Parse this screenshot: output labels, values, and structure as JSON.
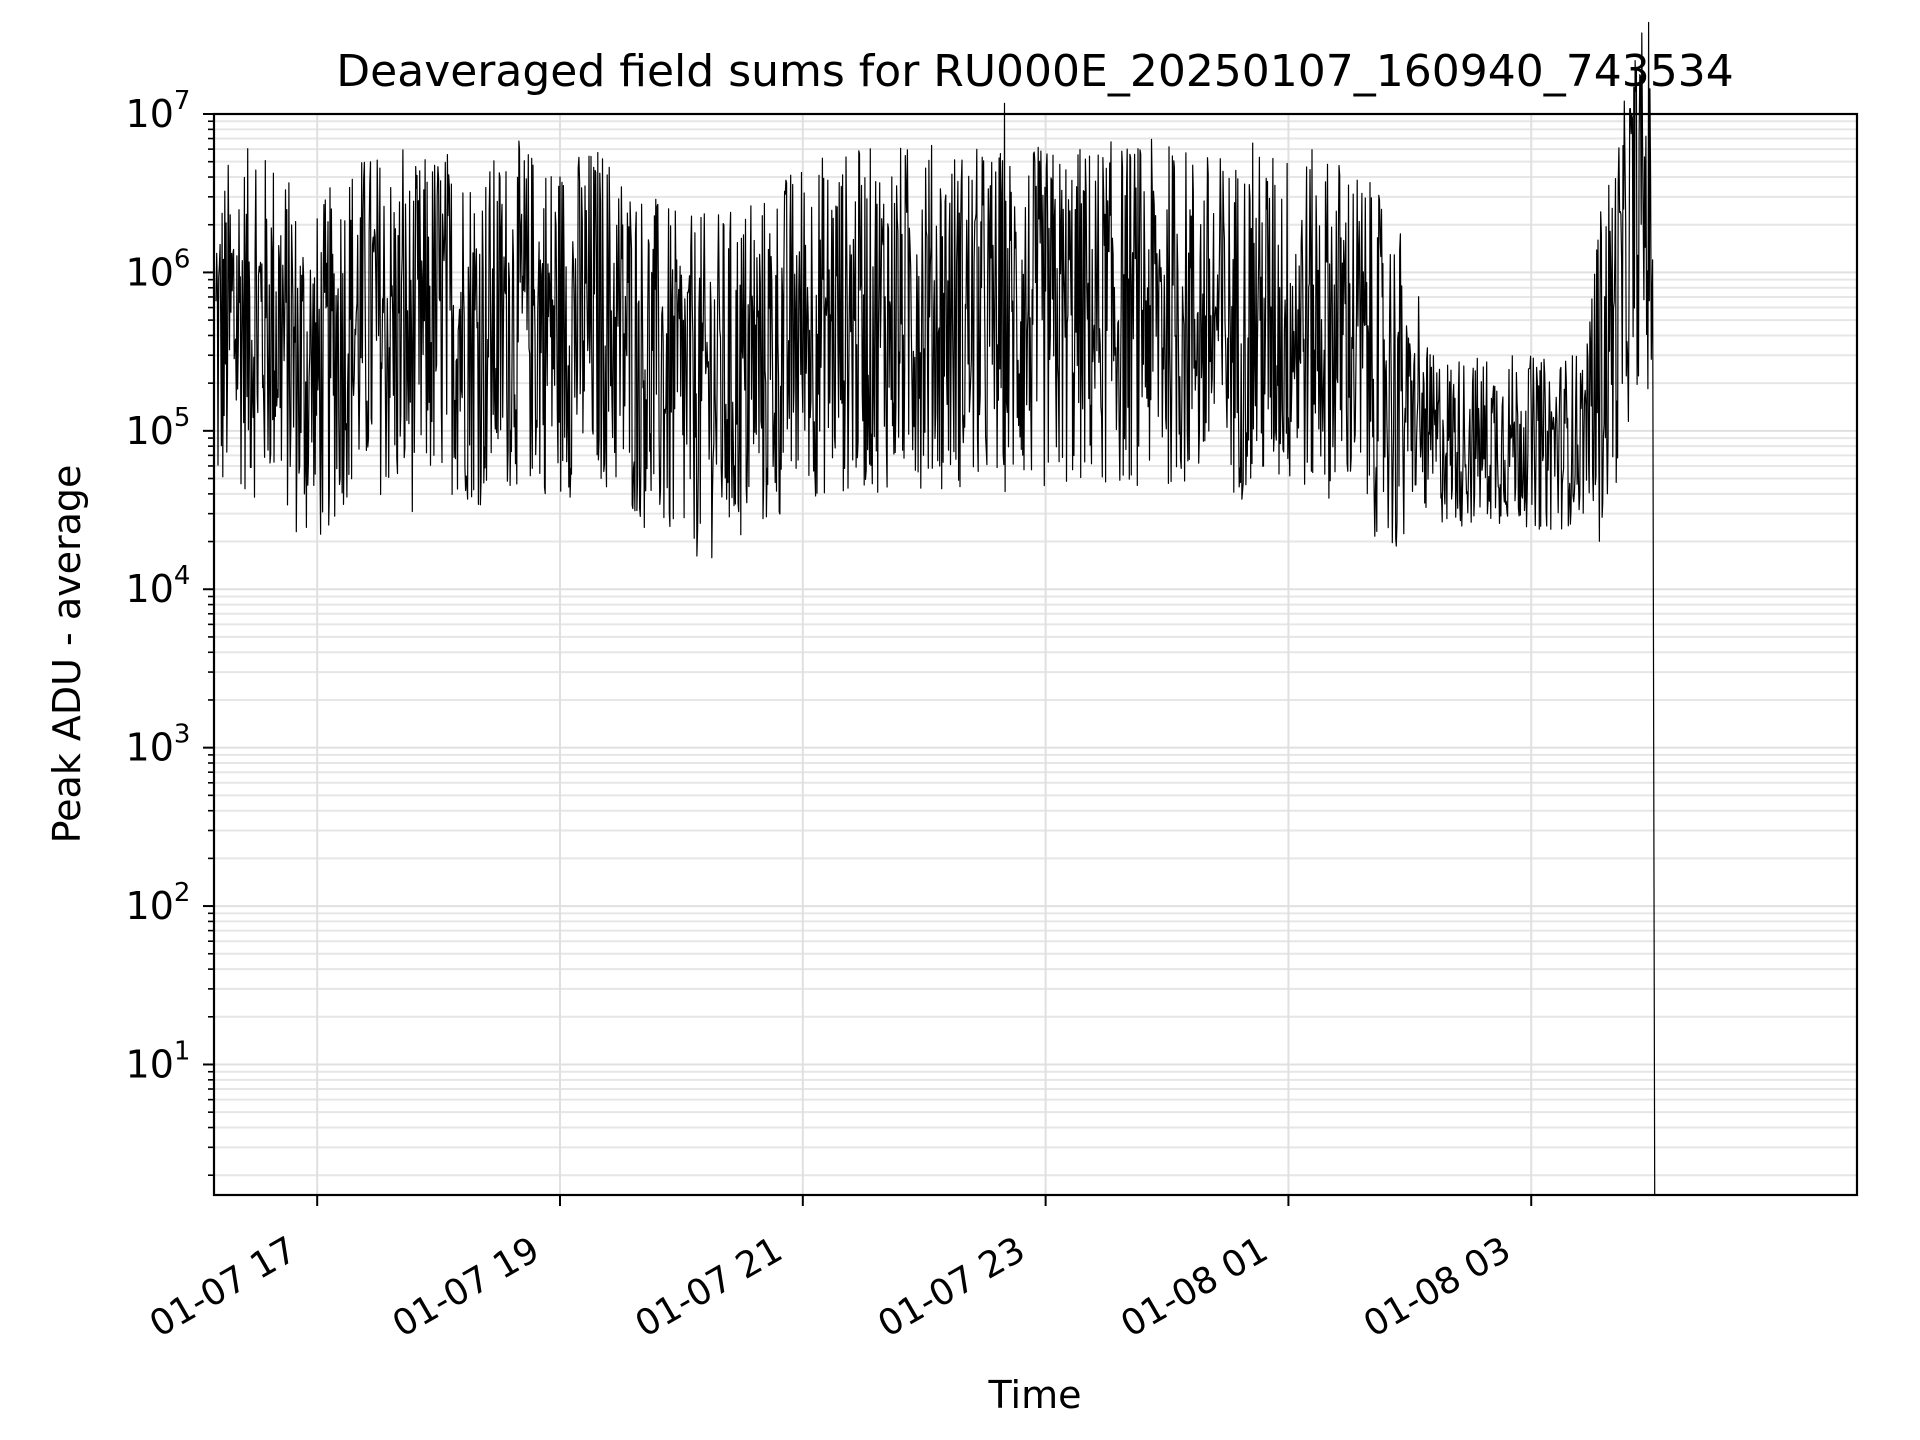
{
  "chart_data": {
    "type": "line",
    "title": "Deaveraged field sums for RU000E_20250107_160940_743534",
    "xlabel": "Time",
    "ylabel": "Peak ADU - average",
    "x_scale": "time",
    "y_scale": "log",
    "xlim": [
      "2025-01-07 16:09",
      "2025-01-08 05:41"
    ],
    "ylim": [
      1.5,
      10000000
    ],
    "grid": true,
    "x_ticks": [
      {
        "t": "2025-01-07 17:00",
        "label": "01-07 17"
      },
      {
        "t": "2025-01-07 19:00",
        "label": "01-07 19"
      },
      {
        "t": "2025-01-07 21:00",
        "label": "01-07 21"
      },
      {
        "t": "2025-01-07 23:00",
        "label": "01-07 23"
      },
      {
        "t": "2025-01-08 01:00",
        "label": "01-08 01"
      },
      {
        "t": "2025-01-08 03:00",
        "label": "01-08 03"
      }
    ],
    "y_ticks": [
      {
        "value": 10,
        "base": "10",
        "exp": "1"
      },
      {
        "value": 100,
        "base": "10",
        "exp": "2"
      },
      {
        "value": 1000,
        "base": "10",
        "exp": "3"
      },
      {
        "value": 10000,
        "base": "10",
        "exp": "4"
      },
      {
        "value": 100000,
        "base": "10",
        "exp": "5"
      },
      {
        "value": 1000000,
        "base": "10",
        "exp": "6"
      },
      {
        "value": 10000000,
        "base": "10",
        "exp": "7"
      }
    ],
    "series": [
      {
        "line_color": "#000000",
        "points": [
          [
            "2025-01-07 16:10",
            300000
          ],
          [
            "2025-01-07 16:20",
            550000
          ],
          [
            "2025-01-07 16:30",
            450000
          ],
          [
            "2025-01-07 16:40",
            500000
          ],
          [
            "2025-01-07 16:50",
            250000
          ],
          [
            "2025-01-07 17:00",
            200000
          ],
          [
            "2025-01-07 17:15",
            450000
          ],
          [
            "2025-01-07 17:30",
            500000
          ],
          [
            "2025-01-07 17:45",
            350000
          ],
          [
            "2025-01-07 18:00",
            550000
          ],
          [
            "2025-01-07 18:20",
            400000
          ],
          [
            "2025-01-07 18:40",
            550000
          ],
          [
            "2025-01-07 19:00",
            450000
          ],
          [
            "2025-01-07 19:20",
            550000
          ],
          [
            "2025-01-07 19:40",
            300000
          ],
          [
            "2025-01-07 20:00",
            180000
          ],
          [
            "2025-01-07 20:20",
            200000
          ],
          [
            "2025-01-07 20:40",
            250000
          ],
          [
            "2025-01-07 21:00",
            450000
          ],
          [
            "2025-01-07 21:30",
            500000
          ],
          [
            "2025-01-07 22:00",
            550000
          ],
          [
            "2025-01-07 22:30",
            500000
          ],
          [
            "2025-01-07 23:00",
            500000
          ],
          [
            "2025-01-07 23:30",
            550000
          ],
          [
            "2025-01-08 00:00",
            550000
          ],
          [
            "2025-01-08 00:30",
            450000
          ],
          [
            "2025-01-08 01:00",
            500000
          ],
          [
            "2025-01-08 01:30",
            450000
          ],
          [
            "2025-01-08 01:50",
            200000
          ],
          [
            "2025-01-08 02:10",
            90000
          ],
          [
            "2025-01-08 02:30",
            85000
          ],
          [
            "2025-01-08 02:50",
            90000
          ],
          [
            "2025-01-08 03:10",
            80000
          ],
          [
            "2025-01-08 03:25",
            95000
          ],
          [
            "2025-01-08 03:35",
            250000
          ],
          [
            "2025-01-08 03:45",
            800000
          ],
          [
            "2025-01-08 03:50",
            2000000
          ],
          [
            "2025-01-08 03:55",
            3000000
          ],
          [
            "2025-01-08 04:00",
            1200000
          ],
          [
            "2025-01-08 04:01",
            1.5
          ]
        ]
      }
    ]
  }
}
